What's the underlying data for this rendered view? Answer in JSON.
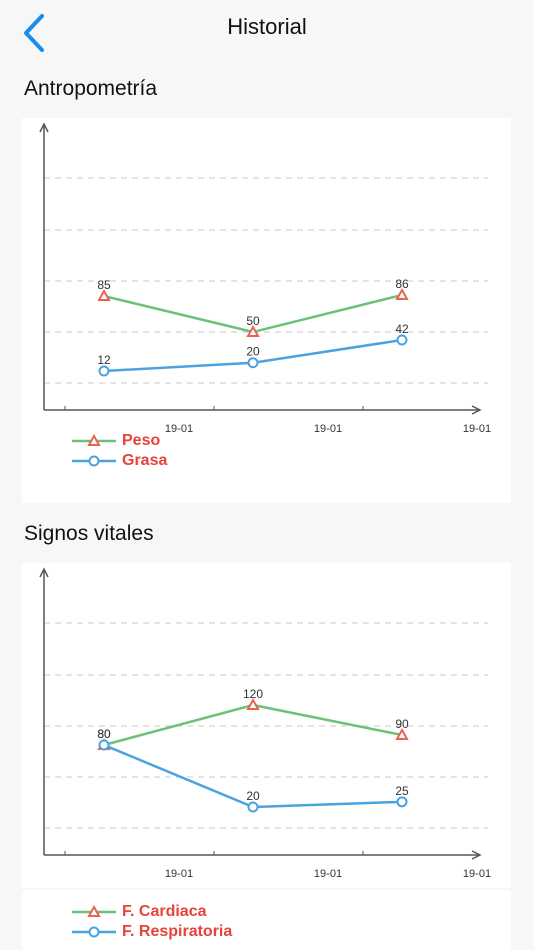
{
  "header": {
    "title": "Historial",
    "back_icon": "chevron-left-icon",
    "accent": "#1a8cf0"
  },
  "sections": [
    {
      "title": "Antropometría",
      "chart_data": {
        "type": "line",
        "x": [
          "19-01",
          "19-01",
          "19-01"
        ],
        "tick_labels": [
          "19-01",
          "19-01",
          "19-01"
        ],
        "series": [
          {
            "name": "Peso",
            "values": [
              85,
              50,
              86
            ],
            "color": "#6cc07a",
            "marker": "triangle",
            "marker_color": "#e8634f"
          },
          {
            "name": "Grasa",
            "values": [
              12,
              20,
              42
            ],
            "color": "#4aa3e0",
            "marker": "circle",
            "marker_color": "#4aa3e0"
          }
        ],
        "grid": true,
        "legend": "bottom-left"
      }
    },
    {
      "title": "Signos vitales",
      "chart_data": {
        "type": "line",
        "x": [
          "19-01",
          "19-01",
          "19-01"
        ],
        "tick_labels": [
          "19-01",
          "19-01",
          "19-01"
        ],
        "series": [
          {
            "name": "F. Cardiaca",
            "values": [
              80,
              120,
              90
            ],
            "color": "#6cc07a",
            "marker": "triangle",
            "marker_color": "#e8634f"
          },
          {
            "name": "F. Respiratoria",
            "values": [
              80,
              20,
              25
            ],
            "color": "#4aa3e0",
            "marker": "circle",
            "marker_color": "#4aa3e0"
          }
        ],
        "grid": true,
        "legend": "bottom-left"
      }
    }
  ]
}
